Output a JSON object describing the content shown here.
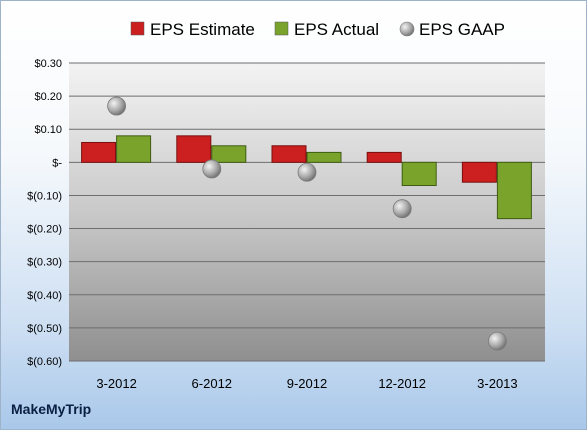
{
  "company": "MakeMyTrip",
  "chart_data": {
    "type": "bar",
    "categories": [
      "3-2012",
      "6-2012",
      "9-2012",
      "12-2012",
      "3-2013"
    ],
    "series": [
      {
        "name": "EPS Estimate",
        "values": [
          0.06,
          0.08,
          0.05,
          0.03,
          -0.06
        ],
        "color": "#cc1f1f"
      },
      {
        "name": "EPS Actual",
        "values": [
          0.08,
          0.05,
          0.03,
          -0.07,
          -0.17
        ],
        "color": "#7aa32c"
      }
    ],
    "scatter_series": {
      "name": "EPS GAAP",
      "values": [
        0.17,
        -0.02,
        -0.03,
        -0.14,
        -0.54
      ],
      "color": "#a9a9a9"
    },
    "y_ticks": [
      "$0.30",
      "$0.20",
      "$0.10",
      "$-",
      "$(0.10)",
      "$(0.20)",
      "$(0.30)",
      "$(0.40)",
      "$(0.50)",
      "$(0.60)"
    ],
    "ylim": [
      -0.6,
      0.3
    ],
    "grid": true,
    "legend_position": "top"
  }
}
